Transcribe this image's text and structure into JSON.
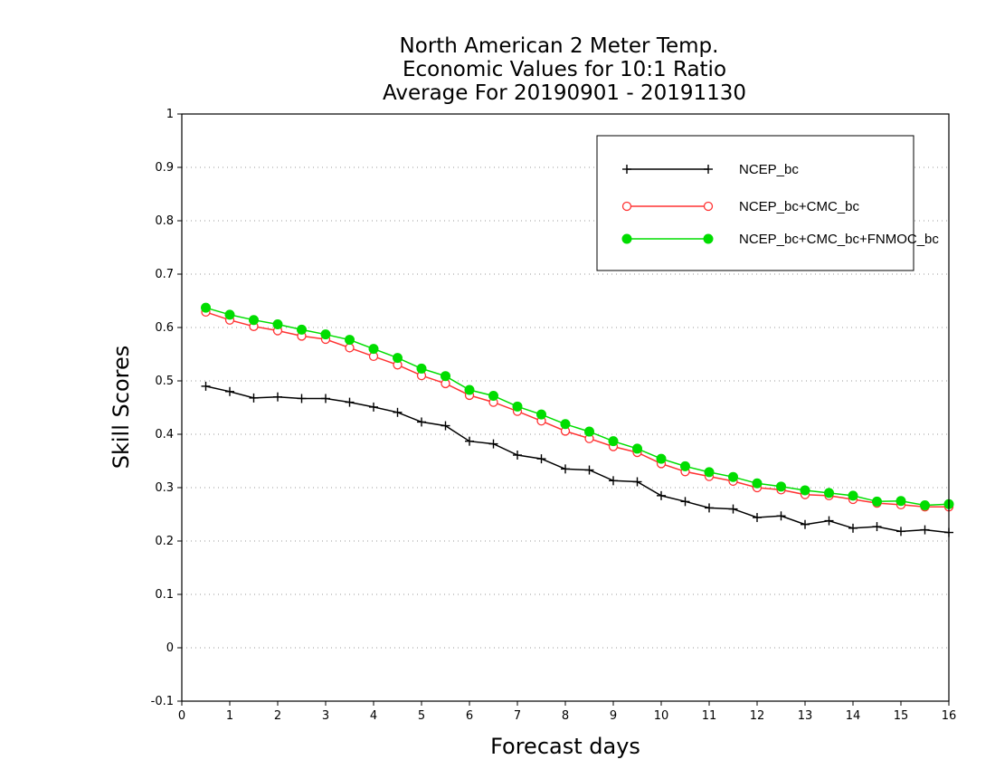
{
  "chart_data": {
    "type": "line",
    "title_lines": [
      "North American 2 Meter Temp.",
      "Economic Values for 10:1 Ratio",
      "Average For 20190901 - 20191130"
    ],
    "xlabel": "Forecast days",
    "ylabel": "Skill Scores",
    "xlim": [
      0,
      16
    ],
    "ylim": [
      -0.1,
      1
    ],
    "x_ticks": [
      0,
      1,
      2,
      3,
      4,
      5,
      6,
      7,
      8,
      9,
      10,
      11,
      12,
      13,
      14,
      15,
      16
    ],
    "y_ticks": [
      -0.1,
      0,
      0.1,
      0.2,
      0.3,
      0.4,
      0.5,
      0.6,
      0.7,
      0.8,
      0.9,
      1
    ],
    "y_tick_labels": [
      "-0.1",
      "0",
      "0.1",
      "0.2",
      "0.3",
      "0.4",
      "0.5",
      "0.6",
      "0.7",
      "0.8",
      "0.9",
      "1"
    ],
    "grid": "horizontal dotted",
    "legend_position": "top-right",
    "x": [
      0.5,
      1,
      1.5,
      2,
      2.5,
      3,
      3.5,
      4,
      4.5,
      5,
      5.5,
      6,
      6.5,
      7,
      7.5,
      8,
      8.5,
      9,
      9.5,
      10,
      10.5,
      11,
      11.5,
      12,
      12.5,
      13,
      13.5,
      14,
      14.5,
      15,
      15.5,
      16
    ],
    "series": [
      {
        "name": "NCEP_bc",
        "color": "#000000",
        "marker": "plus",
        "values": [
          0.49,
          0.48,
          0.468,
          0.47,
          0.467,
          0.467,
          0.46,
          0.451,
          0.441,
          0.423,
          0.416,
          0.387,
          0.382,
          0.361,
          0.354,
          0.335,
          0.333,
          0.313,
          0.311,
          0.285,
          0.274,
          0.262,
          0.26,
          0.244,
          0.247,
          0.231,
          0.238,
          0.224,
          0.227,
          0.218,
          0.221,
          0.216
        ]
      },
      {
        "name": "NCEP_bc+CMC_bc",
        "color": "#ff3333",
        "marker": "open-circle",
        "values": [
          0.629,
          0.614,
          0.602,
          0.594,
          0.584,
          0.578,
          0.562,
          0.546,
          0.53,
          0.51,
          0.495,
          0.473,
          0.46,
          0.443,
          0.425,
          0.406,
          0.392,
          0.377,
          0.366,
          0.345,
          0.33,
          0.321,
          0.312,
          0.3,
          0.296,
          0.287,
          0.285,
          0.278,
          0.271,
          0.268,
          0.264,
          0.264
        ]
      },
      {
        "name": "NCEP_bc+CMC_bc+FNMOC_bc",
        "color": "#00dd00",
        "marker": "filled-circle",
        "values": [
          0.637,
          0.624,
          0.614,
          0.606,
          0.596,
          0.587,
          0.577,
          0.56,
          0.543,
          0.523,
          0.509,
          0.483,
          0.472,
          0.452,
          0.437,
          0.419,
          0.405,
          0.387,
          0.373,
          0.354,
          0.34,
          0.329,
          0.32,
          0.308,
          0.302,
          0.295,
          0.29,
          0.285,
          0.274,
          0.275,
          0.267,
          0.269
        ]
      }
    ]
  }
}
